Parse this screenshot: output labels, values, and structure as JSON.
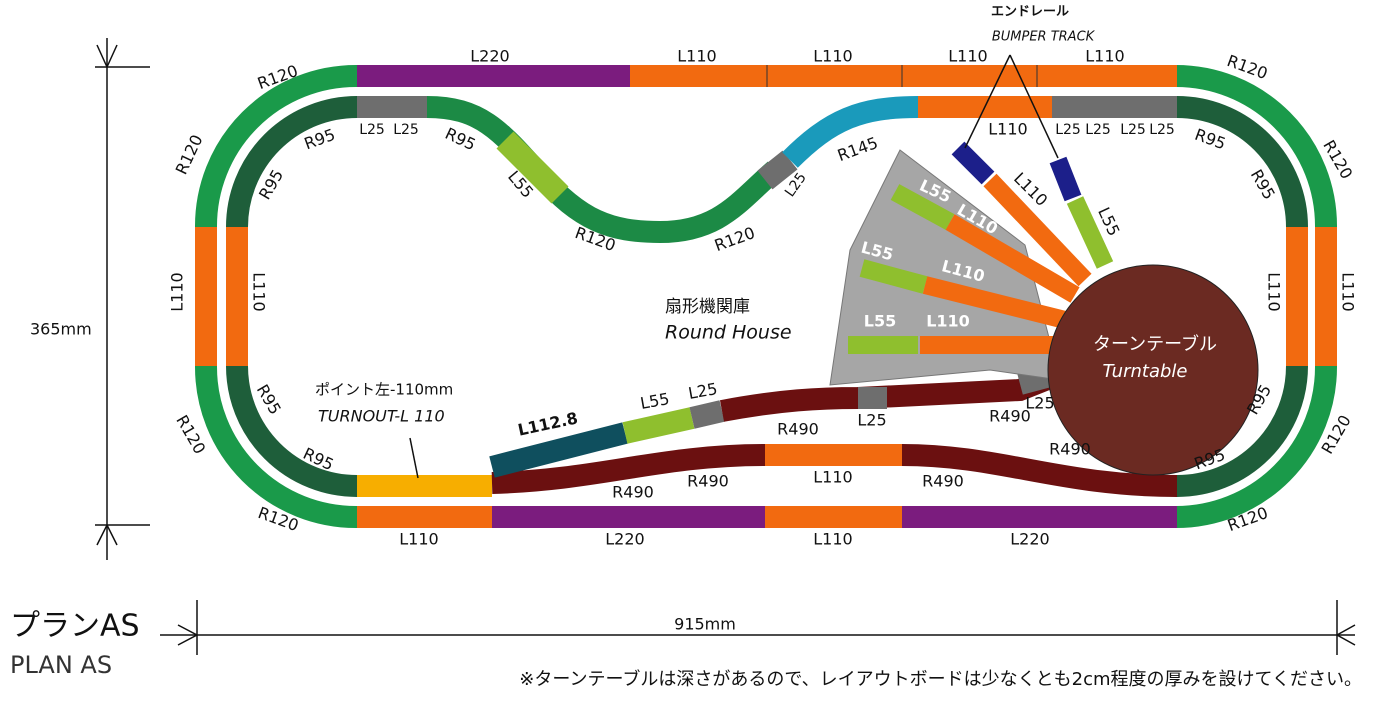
{
  "header": {
    "title": "プランAS",
    "subtitle": "PLAN AS"
  },
  "dimensions": {
    "height": "365mm",
    "width": "915mm"
  },
  "note": "※ターンテーブルは深さがあるので、レイアウトボードは少なくとも2cm程度の厚みを設けてください。",
  "callouts": {
    "bumper_jp": "エンドレール",
    "bumper_en": "BUMPER TRACK",
    "roundhouse_jp": "扇形機関庫",
    "roundhouse_en": "Round House",
    "turntable_jp": "ターンテーブル",
    "turntable_en": "Turntable",
    "turnout_jp": "ポイント左-110mm",
    "turnout_en": "TURNOUT-L 110"
  },
  "tracks": [
    "L220",
    "L110",
    "L110",
    "L110",
    "L110",
    "R120",
    "R120",
    "L110",
    "R120",
    "R120",
    "L110",
    "L220",
    "L110",
    "L220",
    "R120",
    "R120",
    "L110",
    "R120",
    "R120",
    "R95",
    "R95",
    "L110",
    "R95",
    "R95",
    "L25",
    "L25",
    "R95",
    "L55",
    "R120",
    "R120",
    "L25",
    "R145",
    "L110",
    "L25",
    "L25",
    "L25",
    "L25",
    "R95",
    "R95",
    "L110",
    "R95",
    "R95",
    "L110",
    "L55",
    "L55",
    "L110",
    "L55",
    "L110",
    "L55",
    "L110",
    "L112.8",
    "L55",
    "L25",
    "L25",
    "R490",
    "R490",
    "L25",
    "R490",
    "R490",
    "R490",
    "L110",
    "R490"
  ]
}
